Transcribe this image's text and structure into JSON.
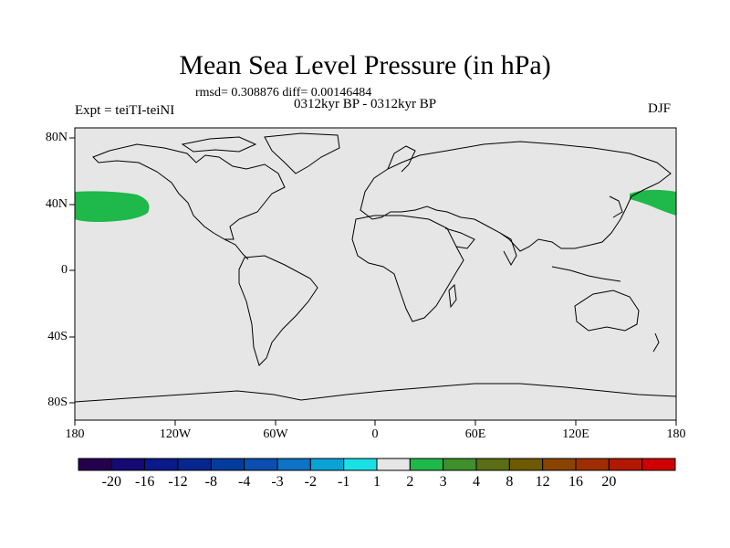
{
  "title": "Mean Sea Level Pressure (in hPa)",
  "stats": "rmsd= 0.308876 diff= 0.00146484",
  "subtitle": "0312kyr BP - 0312kyr BP",
  "left_label": "Expt = teiTI-teiNI",
  "right_label": "DJF",
  "lat_labels": [
    "80N",
    "40N",
    "0",
    "40S",
    "80S"
  ],
  "lon_labels": [
    "180",
    "120W",
    "60W",
    "0",
    "60E",
    "120E",
    "180"
  ],
  "colorbar": {
    "labels": [
      "-20",
      "-16",
      "-12",
      "-8",
      "-4",
      "-3",
      "-2",
      "-1",
      "1",
      "2",
      "3",
      "4",
      "8",
      "12",
      "16",
      "20"
    ],
    "colors": [
      "#24004e",
      "#150a73",
      "#0a1a8a",
      "#06278f",
      "#033c9c",
      "#0a4fb0",
      "#0c73c6",
      "#0aa3d6",
      "#1ae0e6",
      "#e6e6e6",
      "#1fb84a",
      "#3f8f2a",
      "#5a6e14",
      "#6e5a00",
      "#8a4400",
      "#9e2e00",
      "#b01800",
      "#d00000"
    ]
  },
  "colors": {
    "map_bg": "#e6e6e6",
    "anomaly_fill": "#1fb84a",
    "coast": "#000000"
  }
}
